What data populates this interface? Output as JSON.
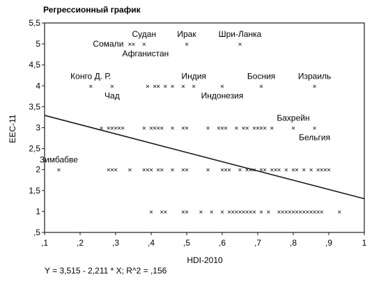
{
  "chart_data": {
    "type": "scatter",
    "title": "Регрессионный график",
    "xlabel": "HDI-2010",
    "ylabel": "EEC-11",
    "xlim": [
      0.1,
      1.0
    ],
    "ylim": [
      0.5,
      5.5
    ],
    "xticks": [
      {
        "value": 0.1,
        "label": ",1"
      },
      {
        "value": 0.2,
        "label": ",2"
      },
      {
        "value": 0.3,
        "label": ",3"
      },
      {
        "value": 0.4,
        "label": ",4"
      },
      {
        "value": 0.5,
        "label": ",5"
      },
      {
        "value": 0.6,
        "label": ",6"
      },
      {
        "value": 0.7,
        "label": ",7"
      },
      {
        "value": 0.8,
        "label": ",8"
      },
      {
        "value": 0.9,
        "label": ",9"
      },
      {
        "value": 1.0,
        "label": "1"
      }
    ],
    "yticks": [
      {
        "value": 0.5,
        "label": ",5"
      },
      {
        "value": 1,
        "label": "1"
      },
      {
        "value": 1.5,
        "label": "1,5"
      },
      {
        "value": 2,
        "label": "2"
      },
      {
        "value": 2.5,
        "label": "2,5"
      },
      {
        "value": 3,
        "label": "3"
      },
      {
        "value": 3.5,
        "label": "3,5"
      },
      {
        "value": 4,
        "label": "4"
      },
      {
        "value": 4.5,
        "label": "4,5"
      },
      {
        "value": 5,
        "label": "5"
      },
      {
        "value": 5.5,
        "label": "5,5"
      }
    ],
    "marker": "×",
    "points": [
      {
        "x": 0.34,
        "y": 5
      },
      {
        "x": 0.35,
        "y": 5
      },
      {
        "x": 0.38,
        "y": 5
      },
      {
        "x": 0.5,
        "y": 5
      },
      {
        "x": 0.65,
        "y": 5
      },
      {
        "x": 0.23,
        "y": 4
      },
      {
        "x": 0.29,
        "y": 4
      },
      {
        "x": 0.39,
        "y": 4
      },
      {
        "x": 0.41,
        "y": 4
      },
      {
        "x": 0.42,
        "y": 4
      },
      {
        "x": 0.44,
        "y": 4
      },
      {
        "x": 0.46,
        "y": 4
      },
      {
        "x": 0.49,
        "y": 4
      },
      {
        "x": 0.52,
        "y": 4
      },
      {
        "x": 0.6,
        "y": 4
      },
      {
        "x": 0.71,
        "y": 4
      },
      {
        "x": 0.86,
        "y": 4
      },
      {
        "x": 0.26,
        "y": 3
      },
      {
        "x": 0.28,
        "y": 3
      },
      {
        "x": 0.29,
        "y": 3
      },
      {
        "x": 0.3,
        "y": 3
      },
      {
        "x": 0.31,
        "y": 3
      },
      {
        "x": 0.32,
        "y": 3
      },
      {
        "x": 0.38,
        "y": 3
      },
      {
        "x": 0.4,
        "y": 3
      },
      {
        "x": 0.41,
        "y": 3
      },
      {
        "x": 0.42,
        "y": 3
      },
      {
        "x": 0.43,
        "y": 3
      },
      {
        "x": 0.46,
        "y": 3
      },
      {
        "x": 0.49,
        "y": 3
      },
      {
        "x": 0.5,
        "y": 3
      },
      {
        "x": 0.56,
        "y": 3
      },
      {
        "x": 0.59,
        "y": 3
      },
      {
        "x": 0.6,
        "y": 3
      },
      {
        "x": 0.61,
        "y": 3
      },
      {
        "x": 0.64,
        "y": 3
      },
      {
        "x": 0.66,
        "y": 3
      },
      {
        "x": 0.67,
        "y": 3
      },
      {
        "x": 0.69,
        "y": 3
      },
      {
        "x": 0.7,
        "y": 3
      },
      {
        "x": 0.71,
        "y": 3
      },
      {
        "x": 0.72,
        "y": 3
      },
      {
        "x": 0.74,
        "y": 3
      },
      {
        "x": 0.8,
        "y": 3
      },
      {
        "x": 0.86,
        "y": 3
      },
      {
        "x": 0.14,
        "y": 2
      },
      {
        "x": 0.28,
        "y": 2
      },
      {
        "x": 0.29,
        "y": 2
      },
      {
        "x": 0.3,
        "y": 2
      },
      {
        "x": 0.34,
        "y": 2
      },
      {
        "x": 0.38,
        "y": 2
      },
      {
        "x": 0.39,
        "y": 2
      },
      {
        "x": 0.4,
        "y": 2
      },
      {
        "x": 0.42,
        "y": 2
      },
      {
        "x": 0.43,
        "y": 2
      },
      {
        "x": 0.46,
        "y": 2
      },
      {
        "x": 0.49,
        "y": 2
      },
      {
        "x": 0.5,
        "y": 2
      },
      {
        "x": 0.56,
        "y": 2
      },
      {
        "x": 0.6,
        "y": 2
      },
      {
        "x": 0.61,
        "y": 2
      },
      {
        "x": 0.62,
        "y": 2
      },
      {
        "x": 0.65,
        "y": 2
      },
      {
        "x": 0.67,
        "y": 2
      },
      {
        "x": 0.68,
        "y": 2
      },
      {
        "x": 0.69,
        "y": 2
      },
      {
        "x": 0.71,
        "y": 2
      },
      {
        "x": 0.72,
        "y": 2
      },
      {
        "x": 0.74,
        "y": 2
      },
      {
        "x": 0.75,
        "y": 2
      },
      {
        "x": 0.76,
        "y": 2
      },
      {
        "x": 0.78,
        "y": 2
      },
      {
        "x": 0.8,
        "y": 2
      },
      {
        "x": 0.81,
        "y": 2
      },
      {
        "x": 0.83,
        "y": 2
      },
      {
        "x": 0.85,
        "y": 2
      },
      {
        "x": 0.87,
        "y": 2
      },
      {
        "x": 0.88,
        "y": 2
      },
      {
        "x": 0.89,
        "y": 2
      },
      {
        "x": 0.9,
        "y": 2
      },
      {
        "x": 0.4,
        "y": 1
      },
      {
        "x": 0.43,
        "y": 1
      },
      {
        "x": 0.44,
        "y": 1
      },
      {
        "x": 0.49,
        "y": 1
      },
      {
        "x": 0.5,
        "y": 1
      },
      {
        "x": 0.54,
        "y": 1
      },
      {
        "x": 0.57,
        "y": 1
      },
      {
        "x": 0.6,
        "y": 1
      },
      {
        "x": 0.62,
        "y": 1
      },
      {
        "x": 0.63,
        "y": 1
      },
      {
        "x": 0.64,
        "y": 1
      },
      {
        "x": 0.65,
        "y": 1
      },
      {
        "x": 0.66,
        "y": 1
      },
      {
        "x": 0.67,
        "y": 1
      },
      {
        "x": 0.68,
        "y": 1
      },
      {
        "x": 0.69,
        "y": 1
      },
      {
        "x": 0.71,
        "y": 1
      },
      {
        "x": 0.73,
        "y": 1
      },
      {
        "x": 0.76,
        "y": 1
      },
      {
        "x": 0.77,
        "y": 1
      },
      {
        "x": 0.78,
        "y": 1
      },
      {
        "x": 0.79,
        "y": 1
      },
      {
        "x": 0.8,
        "y": 1
      },
      {
        "x": 0.81,
        "y": 1
      },
      {
        "x": 0.82,
        "y": 1
      },
      {
        "x": 0.83,
        "y": 1
      },
      {
        "x": 0.84,
        "y": 1
      },
      {
        "x": 0.85,
        "y": 1
      },
      {
        "x": 0.86,
        "y": 1
      },
      {
        "x": 0.87,
        "y": 1
      },
      {
        "x": 0.88,
        "y": 1
      },
      {
        "x": 0.93,
        "y": 1
      }
    ],
    "regression": {
      "intercept": 3.515,
      "slope": -2.211,
      "r2": 0.156
    },
    "annotations": [
      {
        "text": "Сомали",
        "x": 0.34,
        "y": 5,
        "anchor": "end"
      },
      {
        "text": "Судан",
        "x": 0.38,
        "y": 5,
        "anchor": "middle",
        "pos": "above"
      },
      {
        "text": "Афганистан",
        "x": 0.35,
        "y": 5,
        "anchor": "start",
        "pos": "below"
      },
      {
        "text": "Ирак",
        "x": 0.5,
        "y": 5,
        "anchor": "middle",
        "pos": "above"
      },
      {
        "text": "Шри-Ланка",
        "x": 0.65,
        "y": 5,
        "anchor": "middle",
        "pos": "above"
      },
      {
        "text": "Конго Д. Р.",
        "x": 0.23,
        "y": 4,
        "anchor": "middle",
        "pos": "above"
      },
      {
        "text": "Чад",
        "x": 0.29,
        "y": 4,
        "anchor": "middle",
        "pos": "below"
      },
      {
        "text": "Индия",
        "x": 0.52,
        "y": 4,
        "anchor": "middle",
        "pos": "above"
      },
      {
        "text": "Индонезия",
        "x": 0.6,
        "y": 4,
        "anchor": "middle",
        "pos": "below"
      },
      {
        "text": "Босния",
        "x": 0.71,
        "y": 4,
        "anchor": "middle",
        "pos": "above"
      },
      {
        "text": "Израиль",
        "x": 0.86,
        "y": 4,
        "anchor": "middle",
        "pos": "above"
      },
      {
        "text": "Бахрейн",
        "x": 0.8,
        "y": 3,
        "anchor": "middle",
        "pos": "above"
      },
      {
        "text": "Бельгия",
        "x": 0.86,
        "y": 3,
        "anchor": "middle",
        "pos": "below"
      },
      {
        "text": "Зимбабве",
        "x": 0.14,
        "y": 2,
        "anchor": "middle",
        "pos": "above"
      }
    ],
    "equation": "Y = 3,515 - 2,211 * X;  R^2 = ,156",
    "colors": {
      "ink": "#1a1a1a",
      "background": "#ffffff"
    }
  }
}
